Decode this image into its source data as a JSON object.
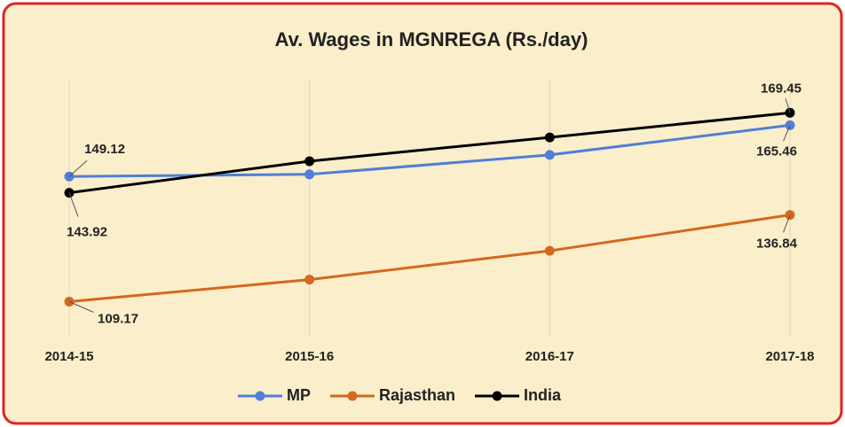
{
  "chart_data": {
    "type": "line",
    "title": "Av. Wages in MGNREGA (Rs./day)",
    "categories": [
      "2014-15",
      "2015-16",
      "2016-17",
      "2017-18"
    ],
    "series": [
      {
        "name": "MP",
        "color": "#4f7fd6",
        "values": [
          149.12,
          149.8,
          156.0,
          165.46
        ]
      },
      {
        "name": "Rajasthan",
        "color": "#d2691e",
        "values": [
          109.17,
          116.2,
          125.4,
          136.84
        ]
      },
      {
        "name": "India",
        "color": "#000000",
        "values": [
          143.92,
          154.0,
          161.6,
          169.45
        ]
      }
    ],
    "label_indices": [
      0,
      3
    ],
    "ylim": [
      98,
      180
    ],
    "grid": true,
    "legend": "bottom"
  }
}
